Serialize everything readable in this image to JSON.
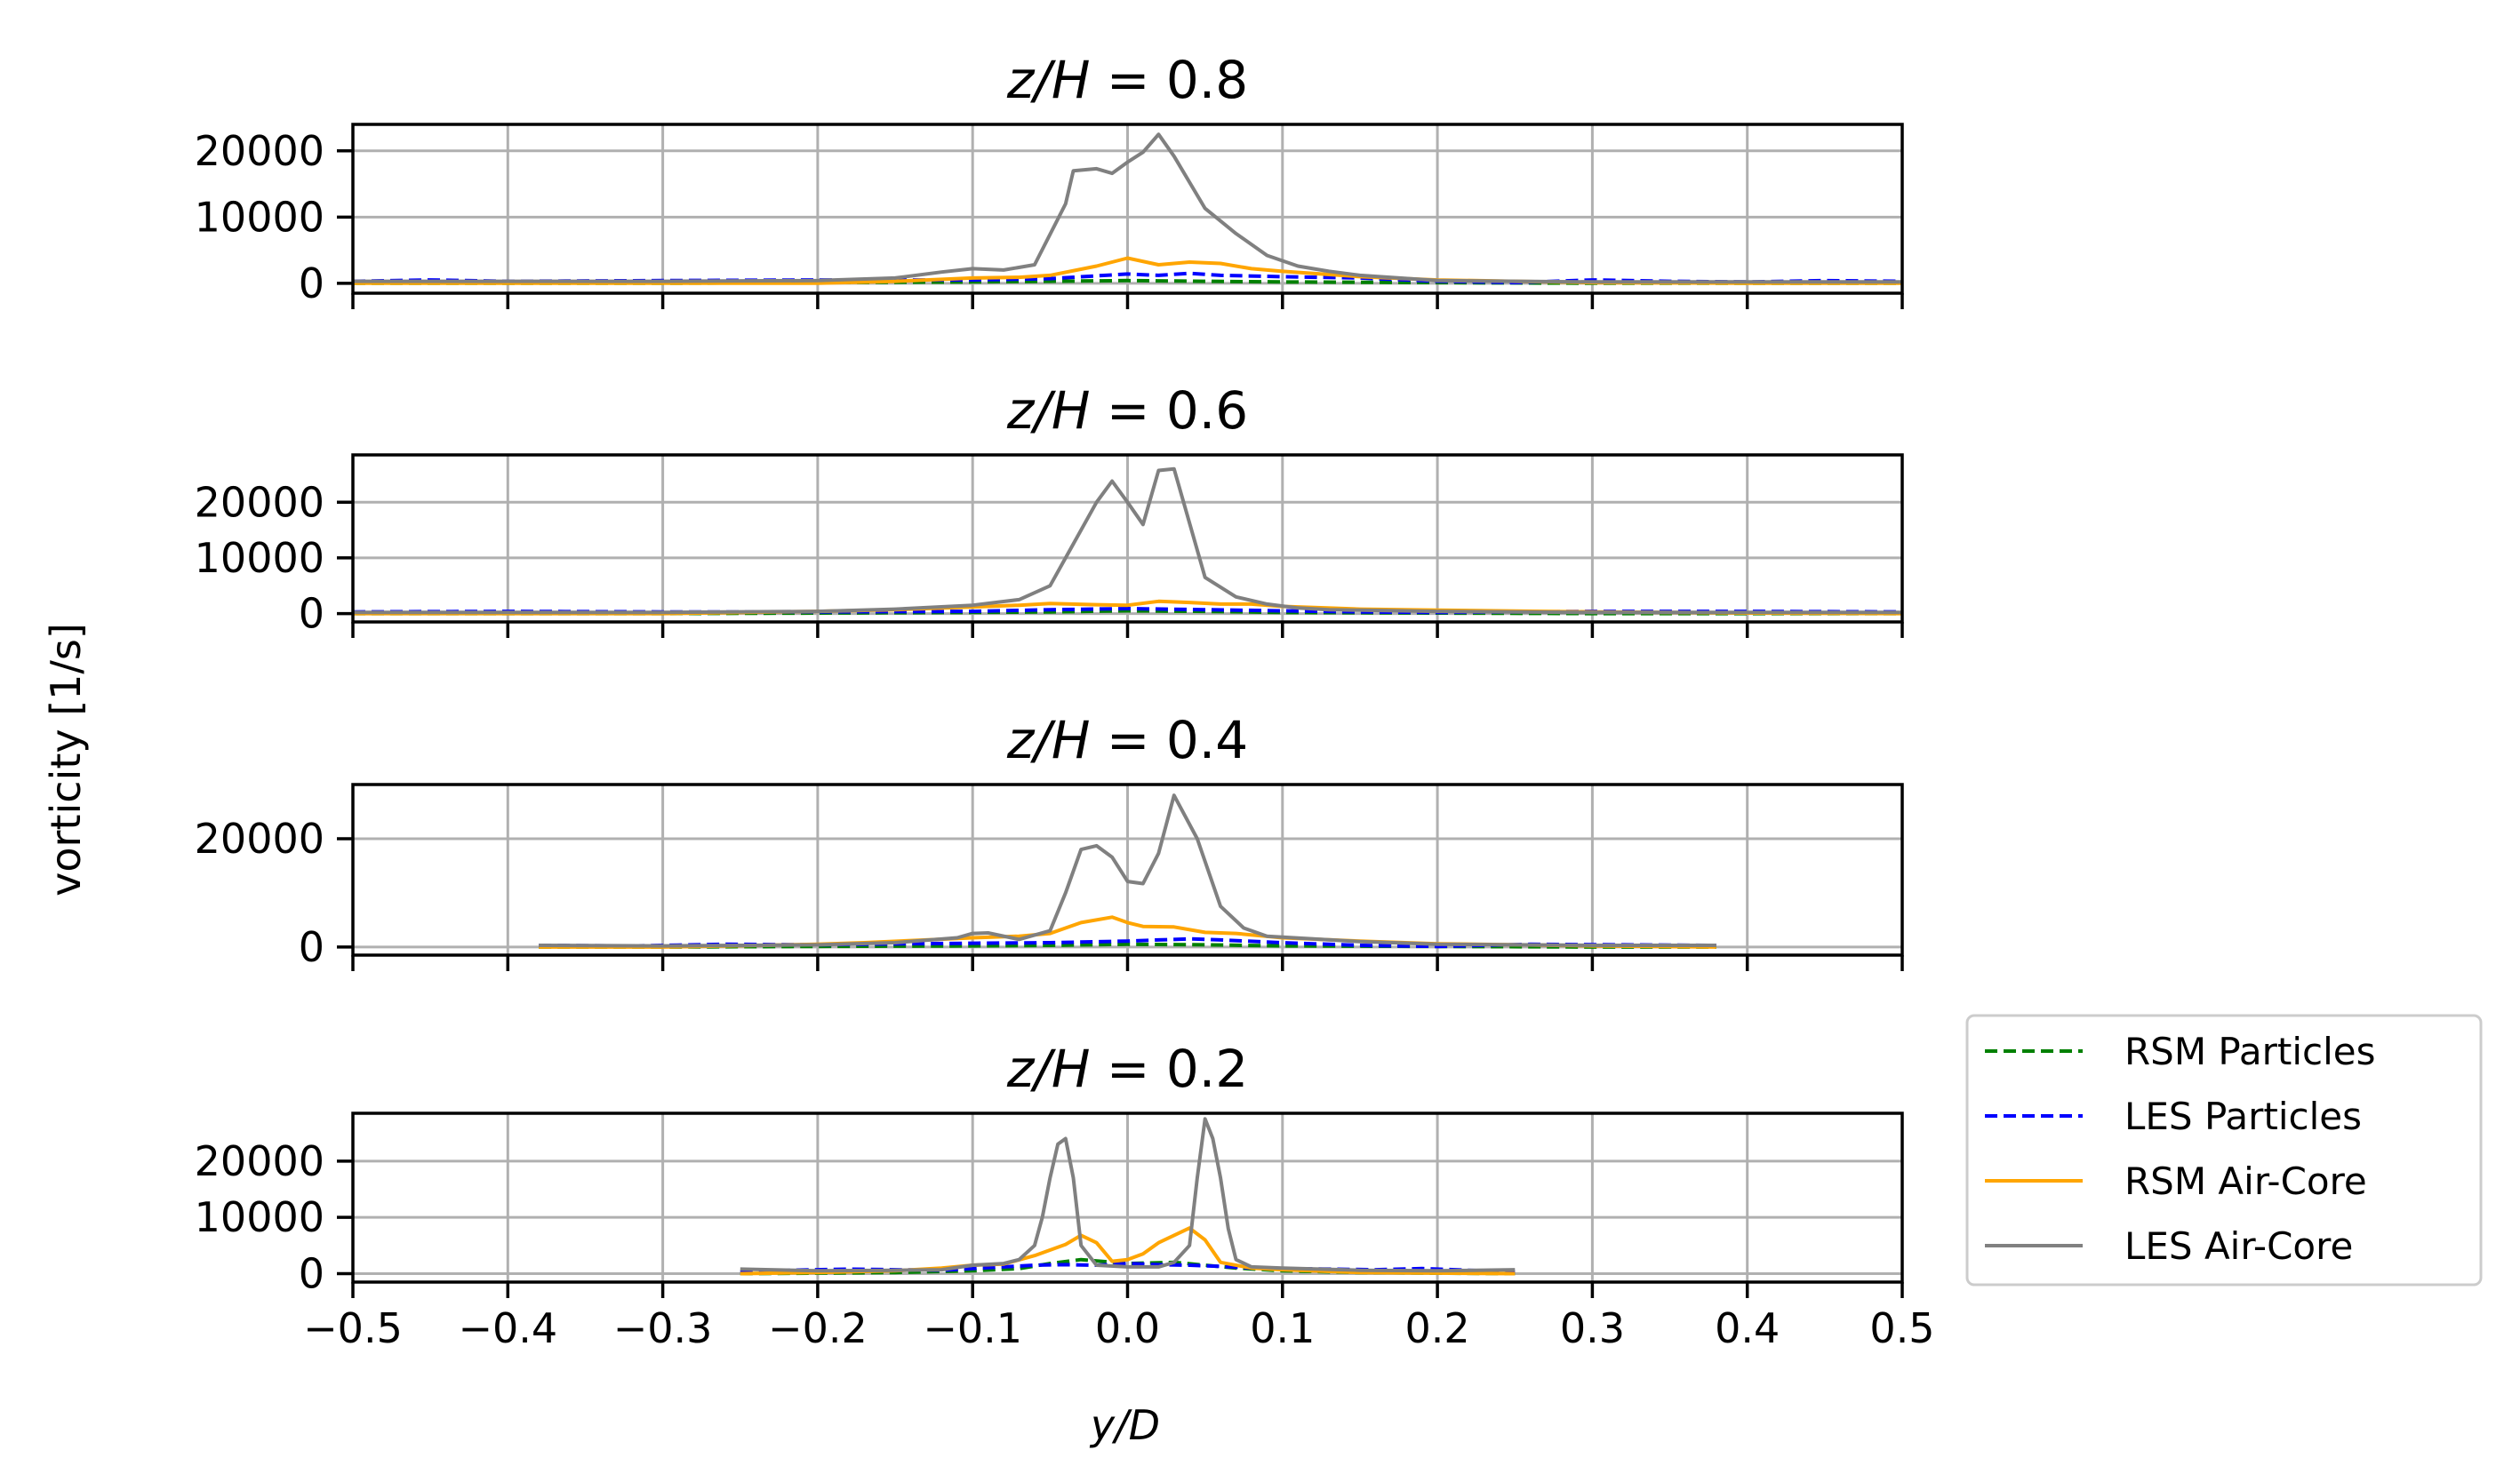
{
  "chart_data": {
    "type": "line",
    "ylabel": "vorticity [1/s]",
    "xlabel": "y/D",
    "xlim": [
      -0.5,
      0.5
    ],
    "xticks": [
      -0.5,
      -0.4,
      -0.3,
      -0.2,
      -0.1,
      0.0,
      0.1,
      0.2,
      0.3,
      0.4,
      0.5
    ],
    "xtick_labels": [
      "−0.5",
      "−0.4",
      "−0.3",
      "−0.2",
      "−0.1",
      "0.0",
      "0.1",
      "0.2",
      "0.3",
      "0.4",
      "0.5"
    ],
    "grid": true,
    "legend": {
      "placement": "outside-right-bottom",
      "entries": [
        {
          "name": "RSM Particles",
          "color": "#008000",
          "style": "dashed"
        },
        {
          "name": "LES Particles",
          "color": "#0000ff",
          "style": "dashed"
        },
        {
          "name": "RSM Air-Core",
          "color": "#ffa500",
          "style": "solid"
        },
        {
          "name": "LES Air-Core",
          "color": "#808080",
          "style": "solid"
        }
      ]
    },
    "panels": [
      {
        "title_lhs": "z/H",
        "title_rhs": "= 0.8",
        "ylim": [
          -1500,
          24000
        ],
        "yticks": [
          0,
          10000,
          20000
        ],
        "ytick_labels": [
          "0",
          "10000",
          "20000"
        ],
        "series": [
          {
            "name": "RSM Particles",
            "x": [
              -0.5,
              -0.4,
              -0.3,
              -0.2,
              -0.1,
              -0.05,
              0.0,
              0.05,
              0.1,
              0.2,
              0.3,
              0.4,
              0.5
            ],
            "y": [
              0,
              0,
              0,
              100,
              200,
              300,
              400,
              300,
              200,
              100,
              0,
              0,
              0
            ]
          },
          {
            "name": "LES Particles",
            "x": [
              -0.5,
              -0.45,
              -0.4,
              -0.3,
              -0.2,
              -0.1,
              -0.05,
              0.0,
              0.02,
              0.04,
              0.06,
              0.1,
              0.15,
              0.2,
              0.25,
              0.3,
              0.35,
              0.4,
              0.45,
              0.5
            ],
            "y": [
              300,
              500,
              300,
              400,
              500,
              500,
              700,
              1400,
              1200,
              1500,
              1200,
              1000,
              800,
              300,
              100,
              500,
              300,
              200,
              400,
              300
            ]
          },
          {
            "name": "RSM Air-Core",
            "x": [
              -0.5,
              -0.3,
              -0.2,
              -0.15,
              -0.1,
              -0.07,
              -0.05,
              -0.02,
              0.0,
              0.02,
              0.04,
              0.06,
              0.08,
              0.1,
              0.15,
              0.2,
              0.25,
              0.3,
              0.4,
              0.5
            ],
            "y": [
              0,
              0,
              0,
              300,
              800,
              900,
              1200,
              2600,
              3800,
              2800,
              3200,
              3000,
              2200,
              1800,
              1000,
              500,
              300,
              100,
              0,
              0
            ]
          },
          {
            "name": "LES Air-Core",
            "x": [
              -0.5,
              -0.3,
              -0.2,
              -0.15,
              -0.12,
              -0.1,
              -0.08,
              -0.06,
              -0.04,
              -0.035,
              -0.02,
              -0.01,
              0.0,
              0.01,
              0.02,
              0.03,
              0.05,
              0.07,
              0.09,
              0.11,
              0.13,
              0.15,
              0.2,
              0.3,
              0.4,
              0.5
            ],
            "y": [
              300,
              300,
              400,
              800,
              1700,
              2200,
              2000,
              2800,
              12000,
              17000,
              17300,
              16600,
              18300,
              19800,
              22500,
              19200,
              11300,
              7500,
              4200,
              2600,
              1800,
              1200,
              400,
              200,
              200,
              200
            ]
          }
        ]
      },
      {
        "title_lhs": "z/H",
        "title_rhs": "= 0.6",
        "ylim": [
          -1500,
          28500
        ],
        "yticks": [
          0,
          10000,
          20000
        ],
        "ytick_labels": [
          "0",
          "10000",
          "20000"
        ],
        "series": [
          {
            "name": "RSM Particles",
            "x": [
              -0.5,
              -0.3,
              -0.2,
              -0.1,
              -0.05,
              0.0,
              0.05,
              0.1,
              0.2,
              0.3,
              0.5
            ],
            "y": [
              0,
              0,
              100,
              200,
              300,
              500,
              400,
              200,
              100,
              0,
              0
            ]
          },
          {
            "name": "LES Particles",
            "x": [
              -0.5,
              -0.4,
              -0.3,
              -0.2,
              -0.1,
              -0.05,
              0.0,
              0.05,
              0.1,
              0.15,
              0.2,
              0.3,
              0.4,
              0.5
            ],
            "y": [
              300,
              400,
              300,
              300,
              400,
              700,
              900,
              700,
              500,
              300,
              200,
              400,
              400,
              300
            ]
          },
          {
            "name": "RSM Air-Core",
            "x": [
              -0.5,
              -0.3,
              -0.2,
              -0.15,
              -0.1,
              -0.07,
              -0.05,
              -0.02,
              0.0,
              0.02,
              0.04,
              0.06,
              0.08,
              0.1,
              0.15,
              0.2,
              0.3,
              0.4,
              0.5
            ],
            "y": [
              0,
              0,
              400,
              700,
              1200,
              1500,
              1800,
              1600,
              1500,
              2200,
              2000,
              1700,
              1700,
              1300,
              800,
              600,
              300,
              100,
              0
            ]
          },
          {
            "name": "LES Air-Core",
            "x": [
              -0.5,
              -0.3,
              -0.2,
              -0.15,
              -0.1,
              -0.07,
              -0.05,
              -0.04,
              -0.02,
              -0.01,
              0.0,
              0.01,
              0.02,
              0.03,
              0.05,
              0.07,
              0.09,
              0.11,
              0.13,
              0.15,
              0.2,
              0.3,
              0.4,
              0.5
            ],
            "y": [
              200,
              200,
              400,
              800,
              1500,
              2500,
              5000,
              10000,
              20000,
              23800,
              20000,
              16000,
              25700,
              26000,
              6500,
              3000,
              1700,
              1000,
              700,
              600,
              400,
              200,
              200,
              200
            ]
          }
        ]
      },
      {
        "title_lhs": "z/H",
        "title_rhs": "= 0.4",
        "ylim": [
          -1500,
          30000
        ],
        "yticks": [
          0,
          20000
        ],
        "ytick_labels": [
          "0",
          "20000"
        ],
        "series": [
          {
            "name": "RSM Particles",
            "x": [
              -0.38,
              -0.3,
              -0.2,
              -0.1,
              -0.05,
              0.0,
              0.05,
              0.1,
              0.2,
              0.3,
              0.38
            ],
            "y": [
              0,
              0,
              100,
              200,
              300,
              500,
              400,
              200,
              100,
              0,
              0
            ]
          },
          {
            "name": "LES Particles",
            "x": [
              -0.38,
              -0.32,
              -0.26,
              -0.2,
              -0.14,
              -0.1,
              -0.05,
              0.0,
              0.02,
              0.04,
              0.06,
              0.1,
              0.15,
              0.2,
              0.26,
              0.32,
              0.38
            ],
            "y": [
              300,
              200,
              500,
              400,
              600,
              700,
              800,
              1100,
              1300,
              1500,
              1300,
              800,
              300,
              100,
              500,
              400,
              300
            ]
          },
          {
            "name": "RSM Air-Core",
            "x": [
              -0.38,
              -0.3,
              -0.2,
              -0.17,
              -0.13,
              -0.1,
              -0.07,
              -0.05,
              -0.03,
              -0.01,
              0.0,
              0.01,
              0.03,
              0.05,
              0.07,
              0.1,
              0.15,
              0.2,
              0.3,
              0.38
            ],
            "y": [
              0,
              0,
              500,
              800,
              1300,
              1700,
              2000,
              2500,
              4500,
              5500,
              4500,
              3800,
              3700,
              2700,
              2500,
              1700,
              1100,
              600,
              200,
              0
            ]
          },
          {
            "name": "LES Air-Core",
            "x": [
              -0.38,
              -0.3,
              -0.2,
              -0.15,
              -0.11,
              -0.1,
              -0.09,
              -0.07,
              -0.05,
              -0.04,
              -0.03,
              -0.02,
              -0.01,
              0.0,
              0.01,
              0.02,
              0.03,
              0.045,
              0.06,
              0.075,
              0.09,
              0.12,
              0.15,
              0.2,
              0.3,
              0.38
            ],
            "y": [
              300,
              200,
              400,
              800,
              1700,
              2500,
              2600,
              1400,
              3000,
              10000,
              18000,
              18700,
              16600,
              12100,
              11700,
              17300,
              28000,
              20000,
              7500,
              3500,
              2000,
              1500,
              1000,
              500,
              300,
              300
            ]
          }
        ]
      },
      {
        "title_lhs": "z/H",
        "title_rhs": "= 0.2",
        "ylim": [
          -1500,
          28500
        ],
        "yticks": [
          0,
          10000,
          20000
        ],
        "ytick_labels": [
          "0",
          "10000",
          "20000"
        ],
        "series": [
          {
            "name": "RSM Particles",
            "x": [
              -0.25,
              -0.2,
              -0.15,
              -0.1,
              -0.07,
              -0.05,
              -0.03,
              0.0,
              0.03,
              0.05,
              0.07,
              0.1,
              0.15,
              0.2,
              0.25
            ],
            "y": [
              0,
              100,
              200,
              500,
              900,
              1800,
              2500,
              1800,
              2000,
              1500,
              1000,
              500,
              200,
              100,
              0
            ]
          },
          {
            "name": "LES Particles",
            "x": [
              -0.25,
              -0.22,
              -0.18,
              -0.15,
              -0.12,
              -0.1,
              -0.08,
              -0.06,
              -0.04,
              -0.02,
              0.0,
              0.02,
              0.04,
              0.06,
              0.08,
              0.1,
              0.13,
              0.16,
              0.19,
              0.22,
              0.25
            ],
            "y": [
              300,
              600,
              800,
              700,
              600,
              900,
              1200,
              1500,
              1600,
              1500,
              1800,
              1600,
              1500,
              1300,
              1000,
              900,
              800,
              700,
              900,
              600,
              300
            ]
          },
          {
            "name": "RSM Air-Core",
            "x": [
              -0.25,
              -0.2,
              -0.15,
              -0.12,
              -0.1,
              -0.08,
              -0.06,
              -0.04,
              -0.03,
              -0.02,
              -0.01,
              0.0,
              0.01,
              0.02,
              0.03,
              0.04,
              0.05,
              0.06,
              0.08,
              0.1,
              0.15,
              0.2,
              0.25
            ],
            "y": [
              0,
              200,
              500,
              1000,
              1500,
              1700,
              3200,
              5200,
              6800,
              5500,
              2200,
              2500,
              3500,
              5500,
              6800,
              8100,
              6000,
              2000,
              1000,
              700,
              200,
              100,
              0
            ]
          },
          {
            "name": "LES Air-Core",
            "x": [
              -0.25,
              -0.2,
              -0.15,
              -0.12,
              -0.1,
              -0.08,
              -0.07,
              -0.06,
              -0.055,
              -0.05,
              -0.045,
              -0.04,
              -0.035,
              -0.03,
              -0.02,
              0.0,
              0.02,
              0.03,
              0.04,
              0.045,
              0.05,
              0.055,
              0.06,
              0.065,
              0.07,
              0.08,
              0.1,
              0.15,
              0.2,
              0.25
            ],
            "y": [
              800,
              500,
              600,
              700,
              1500,
              1800,
              2500,
              5000,
              10000,
              17000,
              23000,
              24000,
              17000,
              5000,
              1500,
              1200,
              1200,
              2000,
              5000,
              17000,
              27500,
              24000,
              17000,
              8000,
              2500,
              1200,
              1000,
              600,
              500,
              700
            ]
          }
        ]
      }
    ]
  }
}
